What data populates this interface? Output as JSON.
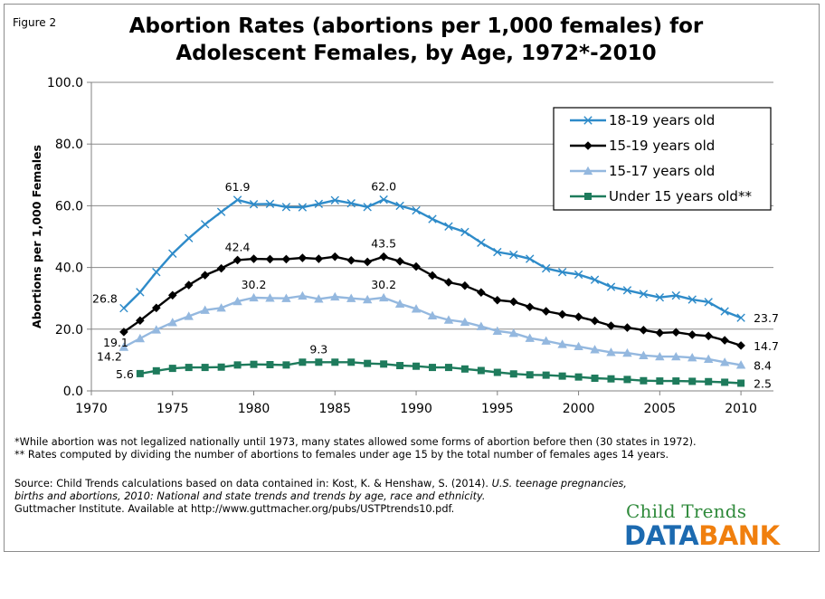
{
  "figure_label": "Figure 2",
  "title_line1": "Abortion Rates (abortions per 1,000 females) for",
  "title_line2": "Adolescent Females, by Age, 1972*-2010",
  "footnote1": "*While abortion was not legalized nationally until 1973, many states allowed some forms of abortion before then (30 states in 1972).",
  "footnote2": "** Rates computed by dividing the number of abortions to females under age 15 by the total number of females ages 14 years.",
  "source_prefix": "Source:  Child Trends calculations based on data contained in: Kost, K. & Henshaw, S. (2014). ",
  "source_italic": "U.S. teenage pregnancies, births and abortions, 2010:  National and state trends and trends by age, race and ethnicity.",
  "source_suffix": "Guttmacher Institute. Available at http://www.guttmacher.org/pubs/USTPtrends10.pdf.",
  "logo": {
    "top": "Child Trends",
    "data": "DATA",
    "bank": "BANK"
  },
  "chart_data": {
    "type": "line",
    "title": "Abortion Rates (abortions per 1,000 females) for Adolescent Females, by Age, 1972*-2010",
    "xlabel": "",
    "ylabel": "Abortions per 1,000 Females",
    "xlim": [
      1970,
      2010
    ],
    "ylim": [
      0,
      100
    ],
    "x_ticks": [
      "1970",
      "1975",
      "1980",
      "1985",
      "1990",
      "1995",
      "2000",
      "2005",
      "2010"
    ],
    "y_ticks": [
      "0.0",
      "20.0",
      "40.0",
      "60.0",
      "80.0",
      "100.0"
    ],
    "grid": "horizontal",
    "legend_position": "top-right",
    "series": [
      {
        "name": "18-19 years old",
        "color": "#2e8bc9",
        "marker": "x-mark",
        "x": [
          1972,
          1973,
          1974,
          1975,
          1976,
          1977,
          1978,
          1979,
          1980,
          1981,
          1982,
          1983,
          1984,
          1985,
          1986,
          1987,
          1988,
          1989,
          1990,
          1991,
          1992,
          1993,
          1994,
          1995,
          1996,
          1997,
          1998,
          1999,
          2000,
          2001,
          2002,
          2003,
          2004,
          2005,
          2006,
          2007,
          2008,
          2009,
          2010
        ],
        "y": [
          26.8,
          32.0,
          38.5,
          44.5,
          49.5,
          54.0,
          58.0,
          61.9,
          60.5,
          60.6,
          59.6,
          59.5,
          60.6,
          61.8,
          60.8,
          59.6,
          62.0,
          60.0,
          58.5,
          55.7,
          53.3,
          51.5,
          48.0,
          45.0,
          44.1,
          42.8,
          39.7,
          38.5,
          37.7,
          36.0,
          33.7,
          32.6,
          31.4,
          30.3,
          30.9,
          29.6,
          28.8,
          25.8,
          23.7
        ],
        "labels": [
          {
            "year": 1972,
            "text": "26.8"
          },
          {
            "year": 1979,
            "text": "61.9"
          },
          {
            "year": 1988,
            "text": "62.0"
          },
          {
            "year": 2010,
            "text": "23.7"
          }
        ]
      },
      {
        "name": "15-19 years old",
        "color": "#000000",
        "marker": "diamond",
        "x": [
          1972,
          1973,
          1974,
          1975,
          1976,
          1977,
          1978,
          1979,
          1980,
          1981,
          1982,
          1983,
          1984,
          1985,
          1986,
          1987,
          1988,
          1989,
          1990,
          1991,
          1992,
          1993,
          1994,
          1995,
          1996,
          1997,
          1998,
          1999,
          2000,
          2001,
          2002,
          2003,
          2004,
          2005,
          2006,
          2007,
          2008,
          2009,
          2010
        ],
        "y": [
          19.1,
          22.8,
          26.9,
          31.0,
          34.3,
          37.5,
          39.7,
          42.4,
          42.8,
          42.7,
          42.7,
          43.1,
          42.8,
          43.5,
          42.3,
          41.8,
          43.5,
          42.0,
          40.3,
          37.4,
          35.2,
          34.1,
          31.9,
          29.4,
          28.9,
          27.2,
          25.8,
          24.8,
          24.0,
          22.7,
          21.1,
          20.5,
          19.7,
          18.8,
          19.0,
          18.2,
          17.8,
          16.4,
          14.7
        ],
        "labels": [
          {
            "year": 1972,
            "text": "19.1"
          },
          {
            "year": 1979,
            "text": "42.4"
          },
          {
            "year": 1988,
            "text": "43.5"
          },
          {
            "year": 2010,
            "text": "14.7"
          }
        ]
      },
      {
        "name": "15-17 years old",
        "color": "#94b8df",
        "marker": "triangle",
        "x": [
          1972,
          1973,
          1974,
          1975,
          1976,
          1977,
          1978,
          1979,
          1980,
          1981,
          1982,
          1983,
          1984,
          1985,
          1986,
          1987,
          1988,
          1989,
          1990,
          1991,
          1992,
          1993,
          1994,
          1995,
          1996,
          1997,
          1998,
          1999,
          2000,
          2001,
          2002,
          2003,
          2004,
          2005,
          2006,
          2007,
          2008,
          2009,
          2010
        ],
        "y": [
          14.2,
          17.0,
          19.8,
          22.2,
          24.2,
          26.2,
          26.9,
          29.0,
          30.2,
          30.1,
          30.0,
          30.8,
          29.8,
          30.5,
          30.0,
          29.6,
          30.2,
          28.2,
          26.6,
          24.4,
          23.0,
          22.3,
          20.9,
          19.4,
          18.7,
          17.1,
          16.2,
          15.1,
          14.4,
          13.4,
          12.5,
          12.3,
          11.5,
          11.1,
          11.1,
          10.8,
          10.3,
          9.3,
          8.4
        ],
        "labels": [
          {
            "year": 1972,
            "text": "14.2"
          },
          {
            "year": 1980,
            "text": "30.2"
          },
          {
            "year": 1988,
            "text": "30.2"
          },
          {
            "year": 2010,
            "text": "8.4"
          }
        ]
      },
      {
        "name": "Under 15 years old**",
        "color": "#1e7b5c",
        "marker": "square",
        "x": [
          1973,
          1974,
          1975,
          1976,
          1977,
          1978,
          1979,
          1980,
          1981,
          1982,
          1983,
          1984,
          1985,
          1986,
          1987,
          1988,
          1989,
          1990,
          1991,
          1992,
          1993,
          1994,
          1995,
          1996,
          1997,
          1998,
          1999,
          2000,
          2001,
          2002,
          2003,
          2004,
          2005,
          2006,
          2007,
          2008,
          2009,
          2010
        ],
        "y": [
          5.6,
          6.5,
          7.3,
          7.6,
          7.6,
          7.7,
          8.4,
          8.6,
          8.5,
          8.4,
          9.3,
          9.3,
          9.3,
          9.3,
          8.9,
          8.7,
          8.2,
          8.0,
          7.6,
          7.6,
          7.1,
          6.6,
          6.0,
          5.5,
          5.2,
          5.1,
          4.8,
          4.5,
          4.1,
          3.9,
          3.7,
          3.3,
          3.2,
          3.2,
          3.1,
          3.0,
          2.8,
          2.5
        ],
        "labels": [
          {
            "year": 1973,
            "text": "5.6"
          },
          {
            "year": 1984,
            "text": "9.3"
          },
          {
            "year": 2010,
            "text": "2.5"
          }
        ]
      }
    ]
  }
}
